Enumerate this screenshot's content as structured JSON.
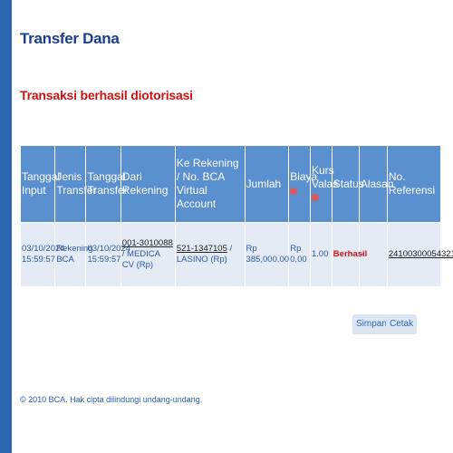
{
  "page": {
    "title": "Transfer Dana",
    "status_message": "Transaksi berhasil diotorisasi"
  },
  "table": {
    "headers": {
      "tanggal_input": "Tanggal Input",
      "jenis_transfer": "Jenis Transfer",
      "tanggal_transfer": "Tanggal Transfer",
      "dari_rekening": "Dari Rekening",
      "ke_rekening": "Ke Rekening / No. BCA Virtual Account",
      "jumlah": "Jumlah",
      "biaya": "Biaya",
      "kurs_valas": "Kurs Valas",
      "status": "Status",
      "alasan": "Alasan",
      "no_referensi": "No. Referensi"
    },
    "row": {
      "tanggal_input": "03/10/2024 15:59:57",
      "jenis_transfer": "Rekening BCA",
      "tanggal_transfer": "03/10/2024 15:59:57",
      "dari_rekening_no": "001-3010088",
      "dari_rekening_name": " / MEDICA CV (Rp)",
      "ke_rekening_no": "521-1347105",
      "ke_rekening_name": " / LASINO (Rp)",
      "jumlah": "Rp 385,000.00",
      "biaya": "Rp 0.00",
      "kurs_valas": "1.00",
      "status": "Berhasil",
      "alasan": "-",
      "no_referensi": "24100300054321"
    }
  },
  "actions": {
    "simpan": "Simpan",
    "cetak": "Cetak"
  },
  "footer": {
    "copyright": "© 2010 BCA. Hak cipta dilindungi undang-undang."
  },
  "colors": {
    "header_bg": "#5a8fd0",
    "row_bg": "#e4ebf5",
    "title": "#1b3f8f",
    "alert": "#cc1212"
  }
}
